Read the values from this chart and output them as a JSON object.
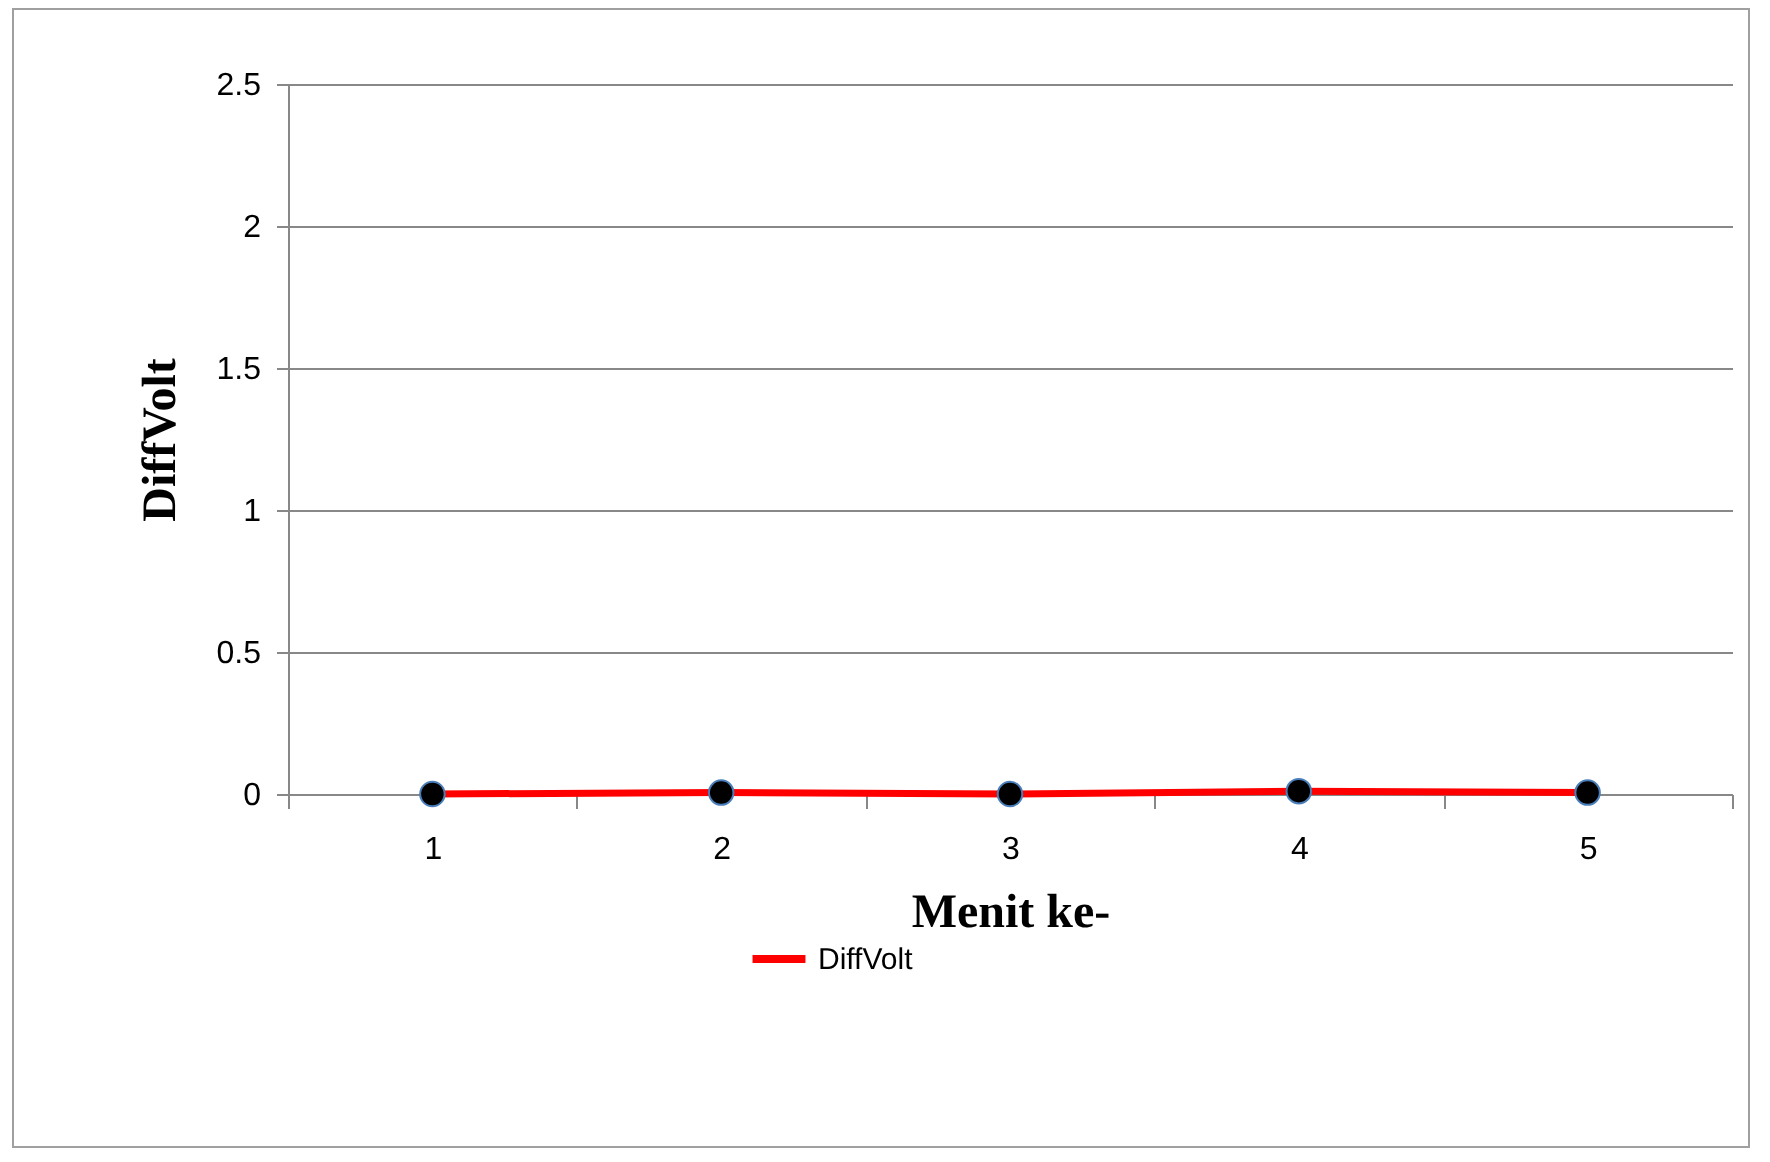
{
  "chart_data": {
    "type": "line",
    "xlabel": "Menit ke-",
    "ylabel": "DiffVolt",
    "categories": [
      "1",
      "2",
      "3",
      "4",
      "5"
    ],
    "series": [
      {
        "name": "DiffVolt",
        "color": "#ff0000",
        "values": [
          0,
          0.005,
          0,
          0.01,
          0.005
        ]
      }
    ],
    "ylim": [
      0,
      2.5
    ],
    "yticks": [
      0,
      0.5,
      1,
      1.5,
      2,
      2.5
    ],
    "grid": "y",
    "legend": "bottom",
    "marker": "circle",
    "line_style": "solid"
  }
}
